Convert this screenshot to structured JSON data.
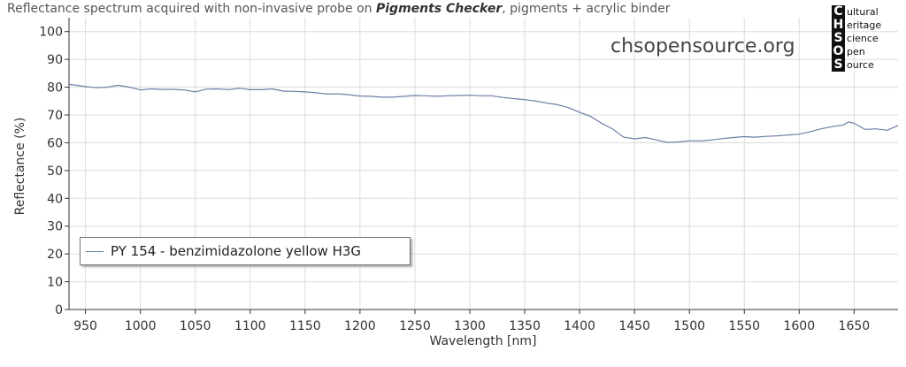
{
  "title": {
    "prefix": "Reflectance spectrum acquired with non-invasive probe on ",
    "bold": "Pigments Checker",
    "suffix": ", pigments + acrylic binder"
  },
  "watermark": "chsopensource.org",
  "logo": {
    "rows": [
      {
        "letter": "C",
        "word": "ultural"
      },
      {
        "letter": "H",
        "word": "eritage"
      },
      {
        "letter": "S",
        "word": "cience"
      },
      {
        "letter": "O",
        "word": "pen"
      },
      {
        "letter": "S",
        "word": "ource"
      }
    ]
  },
  "colors": {
    "series": "#6b7fa6",
    "grid": "#dcdcdc",
    "axis": "#333333"
  },
  "chart_data": {
    "type": "line",
    "xlabel": "Wavelength [nm]",
    "ylabel": "Reflectance (%)",
    "xlim": [
      935,
      1690
    ],
    "ylim": [
      0,
      105
    ],
    "xticks": [
      950,
      1000,
      1050,
      1100,
      1150,
      1200,
      1250,
      1300,
      1350,
      1400,
      1450,
      1500,
      1550,
      1600,
      1650
    ],
    "yticks": [
      0,
      10,
      20,
      30,
      40,
      50,
      60,
      70,
      80,
      90,
      100
    ],
    "grid": true,
    "legend_position": "lower-left",
    "series": [
      {
        "name": "PY 154 - benzimidazolone yellow H3G",
        "x": [
          935,
          945,
          950,
          960,
          970,
          980,
          990,
          1000,
          1010,
          1020,
          1030,
          1040,
          1050,
          1060,
          1070,
          1080,
          1090,
          1100,
          1110,
          1120,
          1130,
          1140,
          1150,
          1160,
          1170,
          1180,
          1190,
          1200,
          1210,
          1220,
          1230,
          1240,
          1250,
          1260,
          1270,
          1280,
          1290,
          1300,
          1310,
          1320,
          1330,
          1340,
          1350,
          1360,
          1370,
          1380,
          1390,
          1400,
          1410,
          1420,
          1430,
          1440,
          1450,
          1460,
          1470,
          1480,
          1490,
          1500,
          1510,
          1520,
          1530,
          1540,
          1550,
          1560,
          1570,
          1580,
          1590,
          1600,
          1610,
          1620,
          1630,
          1640,
          1645,
          1650,
          1660,
          1670,
          1680,
          1690
        ],
        "y": [
          81.0,
          80.5,
          80.2,
          79.8,
          80.0,
          80.7,
          80.0,
          79.0,
          79.4,
          79.2,
          79.2,
          79.0,
          78.3,
          79.3,
          79.4,
          79.1,
          79.6,
          79.1,
          79.1,
          79.4,
          78.6,
          78.5,
          78.3,
          78.0,
          77.5,
          77.6,
          77.3,
          76.8,
          76.7,
          76.4,
          76.4,
          76.7,
          77.0,
          76.9,
          76.7,
          76.9,
          77.0,
          77.1,
          76.9,
          76.9,
          76.3,
          75.9,
          75.5,
          75.0,
          74.3,
          73.7,
          72.6,
          71.0,
          69.5,
          67.0,
          65.0,
          62.0,
          61.4,
          61.9,
          61.0,
          60.1,
          60.3,
          60.7,
          60.6,
          61.0,
          61.5,
          61.9,
          62.2,
          62.0,
          62.3,
          62.5,
          62.8,
          63.1,
          64.0,
          65.0,
          65.8,
          66.4,
          67.5,
          67.0,
          64.8,
          65.0,
          64.5,
          66.2
        ]
      }
    ]
  }
}
